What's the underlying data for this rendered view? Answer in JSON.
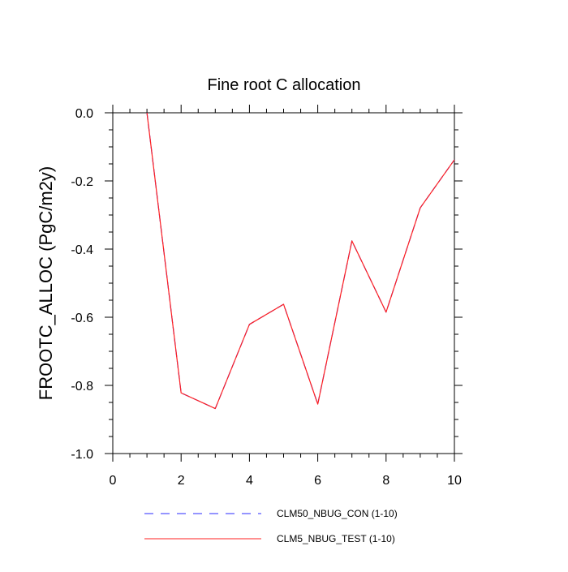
{
  "chart_data": {
    "type": "line",
    "title": "Fine root C allocation",
    "ylabel": "FROOTC_ALLOC  (PgC/m2y)",
    "xlabel": "",
    "xlim": [
      0,
      10
    ],
    "ylim": [
      -1.0,
      0.0
    ],
    "x_ticks": [
      0,
      2,
      4,
      6,
      8,
      10
    ],
    "y_ticks": [
      0.0,
      -0.2,
      -0.4,
      -0.6,
      -0.8,
      -1.0
    ],
    "x_tick_labels": [
      "0",
      "2",
      "4",
      "6",
      "8",
      "10"
    ],
    "y_tick_labels": [
      "0.0",
      "-0.2",
      "-0.4",
      "-0.6",
      "-0.8",
      "-1.0"
    ],
    "grid": false,
    "legend_position": "bottom",
    "x": [
      1,
      2,
      3,
      4,
      5,
      6,
      7,
      8,
      9,
      10
    ],
    "series": [
      {
        "name": "CLM50_NBUG_CON (1-10)",
        "color": "#2b2bff",
        "style": "dashed",
        "values": [
          0.0,
          -0.822,
          -0.868,
          -0.621,
          -0.562,
          -0.855,
          -0.376,
          -0.585,
          -0.279,
          -0.138
        ]
      },
      {
        "name": "CLM5_NBUG_TEST (1-10)",
        "color": "#ff2020",
        "style": "solid",
        "values": [
          0.0,
          -0.822,
          -0.868,
          -0.621,
          -0.562,
          -0.855,
          -0.376,
          -0.585,
          -0.279,
          -0.138
        ]
      }
    ]
  }
}
